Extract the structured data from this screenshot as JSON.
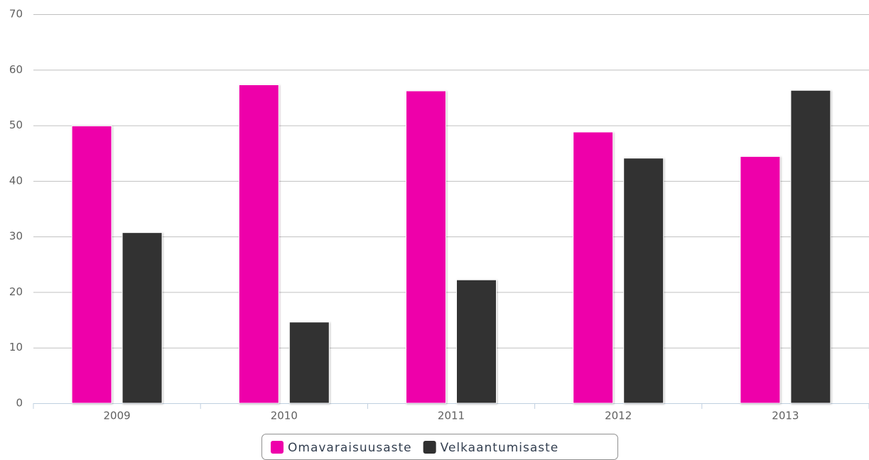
{
  "chart_data": {
    "type": "bar",
    "categories": [
      "2009",
      "2010",
      "2011",
      "2012",
      "2013"
    ],
    "series": [
      {
        "name": "Omavaraisuusaste",
        "color": "#ee00aa",
        "values": [
          49.9,
          57.3,
          56.2,
          48.8,
          44.4
        ]
      },
      {
        "name": "Velkaantumisaste",
        "color": "#303030",
        "values": [
          30.7,
          14.6,
          22.2,
          44.1,
          56.3
        ]
      }
    ],
    "ylim": [
      0,
      70
    ],
    "yticks": [
      0,
      10,
      20,
      30,
      40,
      50,
      60,
      70
    ],
    "grid": true,
    "legend": "bottom"
  }
}
